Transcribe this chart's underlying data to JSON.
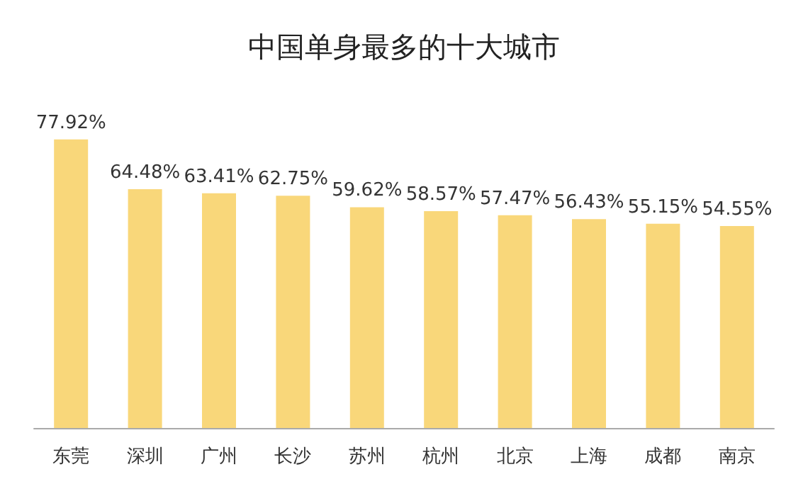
{
  "chart_data": {
    "type": "bar",
    "title": "中国单身最多的十大城市",
    "categories": [
      "东莞",
      "深圳",
      "广州",
      "长沙",
      "苏州",
      "杭州",
      "北京",
      "上海",
      "成都",
      "南京"
    ],
    "values": [
      77.92,
      64.48,
      63.41,
      62.75,
      59.62,
      58.57,
      57.47,
      56.43,
      55.15,
      54.55
    ],
    "value_labels": [
      "77.92%",
      "64.48%",
      "63.41%",
      "62.75%",
      "59.62%",
      "58.57%",
      "57.47%",
      "56.43%",
      "55.15%",
      "54.55%"
    ],
    "color": "#f9d77a"
  }
}
